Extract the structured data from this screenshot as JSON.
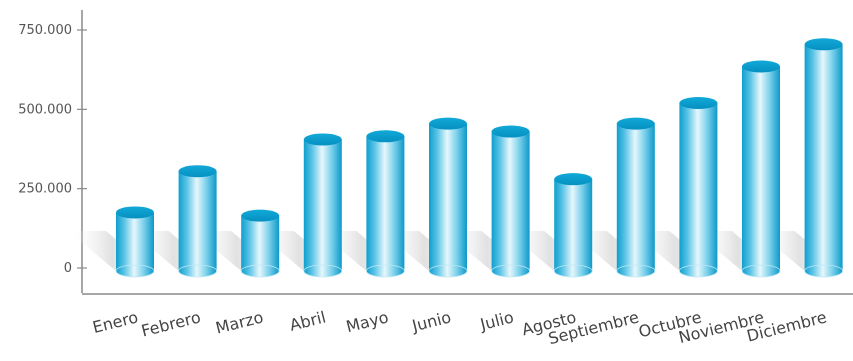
{
  "chart_data": {
    "type": "bar",
    "categories": [
      "Enero",
      "Febrero",
      "Marzo",
      "Abril",
      "Mayo",
      "Junio",
      "Julio",
      "Agosto",
      "Septiembre",
      "Octubre",
      "Noviembre",
      "Diciembre"
    ],
    "values": [
      175000,
      305000,
      165000,
      405000,
      415000,
      455000,
      430000,
      280000,
      455000,
      520000,
      635000,
      705000
    ],
    "ylim": [
      0,
      750000
    ],
    "yticks": [
      0,
      250000,
      500000,
      750000
    ],
    "ytick_labels": [
      "0",
      "250.000",
      "500.000",
      "750.000"
    ],
    "bar_style": "3d-cylinder",
    "grid": false,
    "colors": {
      "bar_light": "#e4f6fb",
      "bar_dark": "#0fa3d2",
      "bar_top": "#0aa0d0",
      "axis": "#888888"
    }
  }
}
